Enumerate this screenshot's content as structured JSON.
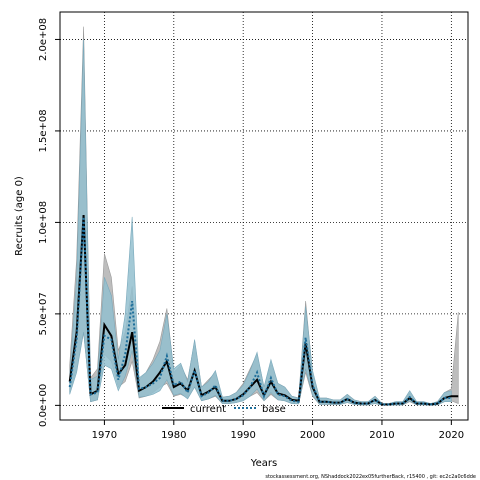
{
  "chart_data": {
    "type": "area",
    "xlabel": "Years",
    "ylabel": "Recruits (age 0)",
    "xlim": [
      1963.6,
      2022.4
    ],
    "ylim": [
      -8000000,
      215000000
    ],
    "x_ticks": [
      1970,
      1980,
      1990,
      2000,
      2010,
      2020
    ],
    "x_tick_labels": [
      "1970",
      "1980",
      "1990",
      "2000",
      "2010",
      "2020"
    ],
    "y_ticks": [
      0,
      50000000,
      100000000,
      150000000,
      200000000
    ],
    "y_tick_labels": [
      "0.0e+00",
      "5.0e+07",
      "1.0e+08",
      "1.5e+08",
      "2.0e+08"
    ],
    "grid": true,
    "legend_position": "bottom-center",
    "footer_text": "stockassessment.org,  NShaddock2022ex05furtherBack,  r15400 ,  git:  ec2c2a0c6dde",
    "colors": {
      "current_band": "#bdbdbd",
      "base_band": "#93bfcf",
      "current_line": "#000000",
      "base_line": "#1f6f9b"
    },
    "series": [
      {
        "name": "current",
        "style": "solid",
        "x": [
          1965,
          1966,
          1967,
          1968,
          1969,
          1970,
          1971,
          1972,
          1973,
          1974,
          1975,
          1976,
          1977,
          1978,
          1979,
          1980,
          1981,
          1982,
          1983,
          1984,
          1985,
          1986,
          1987,
          1988,
          1989,
          1990,
          1991,
          1992,
          1993,
          1994,
          1995,
          1996,
          1997,
          1998,
          1999,
          2000,
          2001,
          2002,
          2003,
          2004,
          2005,
          2006,
          2007,
          2008,
          2009,
          2010,
          2011,
          2012,
          2013,
          2014,
          2015,
          2016,
          2017,
          2018,
          2019,
          2020,
          2021
        ],
        "values": [
          13000000,
          40000000,
          104000000,
          6000000,
          8000000,
          44000000,
          38000000,
          17000000,
          22000000,
          40000000,
          8000000,
          10000000,
          13000000,
          18000000,
          24000000,
          10000000,
          12000000,
          8000000,
          19000000,
          5500000,
          7500000,
          10000000,
          2500000,
          2500000,
          3500000,
          6000000,
          10000000,
          14000000,
          5500000,
          13000000,
          6500000,
          5500000,
          3000000,
          2500000,
          34000000,
          10000000,
          2000000,
          2000000,
          1500000,
          1500000,
          3500000,
          1500000,
          1000000,
          1000000,
          3000000,
          500000,
          500000,
          1000000,
          1000000,
          4000000,
          1000000,
          1000000,
          500000,
          1000000,
          4000000,
          5000000,
          5000000
        ],
        "lower": [
          7000000,
          20000000,
          40000000,
          2000000,
          3000000,
          28000000,
          24000000,
          10000000,
          13000000,
          24000000,
          4000000,
          5000000,
          7000000,
          10000000,
          12000000,
          5000000,
          6000000,
          4000000,
          10000000,
          2500000,
          3500000,
          5000000,
          1000000,
          1000000,
          1500000,
          3000000,
          5000000,
          7000000,
          2500000,
          6000000,
          3000000,
          2500000,
          1000000,
          1000000,
          18000000,
          5000000,
          500000,
          500000,
          500000,
          500000,
          1500000,
          500000,
          200000,
          200000,
          1000000,
          100000,
          100000,
          200000,
          200000,
          2000000,
          300000,
          300000,
          100000,
          300000,
          2000000,
          2500000,
          1000000
        ],
        "upper": [
          22000000,
          80000000,
          207000000,
          15000000,
          20000000,
          83000000,
          70000000,
          30000000,
          40000000,
          65000000,
          14000000,
          18000000,
          25000000,
          35000000,
          53000000,
          18000000,
          22000000,
          14000000,
          35000000,
          10000000,
          14000000,
          18000000,
          4500000,
          5000000,
          7000000,
          12000000,
          20000000,
          28000000,
          10000000,
          23000000,
          12000000,
          10000000,
          5000000,
          4000000,
          57000000,
          17000000,
          4000000,
          4000000,
          3000000,
          3000000,
          6000000,
          3000000,
          2000000,
          2000000,
          5000000,
          1000000,
          1000000,
          2000000,
          2000000,
          7000000,
          2000000,
          2000000,
          1000000,
          2000000,
          7000000,
          9000000,
          51000000
        ]
      },
      {
        "name": "base",
        "style": "dotted",
        "x": [
          1965,
          1966,
          1967,
          1968,
          1969,
          1970,
          1971,
          1972,
          1973,
          1974,
          1975,
          1976,
          1977,
          1978,
          1979,
          1980,
          1981,
          1982,
          1983,
          1984,
          1985,
          1986,
          1987,
          1988,
          1989,
          1990,
          1991,
          1992,
          1993,
          1994,
          1995,
          1996,
          1997,
          1998,
          1999,
          2000,
          2001,
          2002,
          2003,
          2004,
          2005,
          2006,
          2007,
          2008,
          2009,
          2010,
          2011,
          2012,
          2013,
          2014,
          2015,
          2016,
          2017,
          2018,
          2019,
          2020
        ],
        "values": [
          10000000,
          36000000,
          103000000,
          6000000,
          7000000,
          38000000,
          36000000,
          14000000,
          28000000,
          57000000,
          9000000,
          10000000,
          12000000,
          15000000,
          27000000,
          11000000,
          13000000,
          7000000,
          19000000,
          5000000,
          7000000,
          11000000,
          2500000,
          2500000,
          3500000,
          5500000,
          10000000,
          18000000,
          5000000,
          15000000,
          6000000,
          5000000,
          2500000,
          2000000,
          37000000,
          11000000,
          2000000,
          2000000,
          1500000,
          1500000,
          3500000,
          1500000,
          1000000,
          1000000,
          3000000,
          500000,
          500000,
          1000000,
          1000000,
          4500000,
          1000000,
          1000000,
          500000,
          1000000,
          4000000,
          4000000
        ],
        "lower": [
          6000000,
          18000000,
          40000000,
          2000000,
          3000000,
          22000000,
          20000000,
          8000000,
          16000000,
          30000000,
          4500000,
          5000000,
          6000000,
          8000000,
          14000000,
          5500000,
          6500000,
          3500000,
          10000000,
          2500000,
          3500000,
          5500000,
          1000000,
          1000000,
          1500000,
          2500000,
          5000000,
          9000000,
          2500000,
          7000000,
          3000000,
          2500000,
          1000000,
          800000,
          20000000,
          5500000,
          600000,
          600000,
          500000,
          500000,
          1500000,
          500000,
          200000,
          200000,
          1000000,
          100000,
          100000,
          200000,
          200000,
          2500000,
          300000,
          300000,
          100000,
          300000,
          2000000,
          2000000
        ],
        "upper": [
          16000000,
          70000000,
          200000000,
          14000000,
          16000000,
          70000000,
          60000000,
          25000000,
          50000000,
          103000000,
          15000000,
          18000000,
          23000000,
          30000000,
          50000000,
          20000000,
          23000000,
          13000000,
          36000000,
          10000000,
          13000000,
          19000000,
          4500000,
          5000000,
          7000000,
          11000000,
          19000000,
          29000000,
          10000000,
          25000000,
          12000000,
          10000000,
          5000000,
          4000000,
          54000000,
          19000000,
          4000000,
          4000000,
          3000000,
          3000000,
          6000000,
          3000000,
          2000000,
          2000000,
          5000000,
          1000000,
          1000000,
          2000000,
          2000000,
          8000000,
          2000000,
          2000000,
          1000000,
          2000000,
          7000000,
          8000000
        ]
      }
    ]
  }
}
